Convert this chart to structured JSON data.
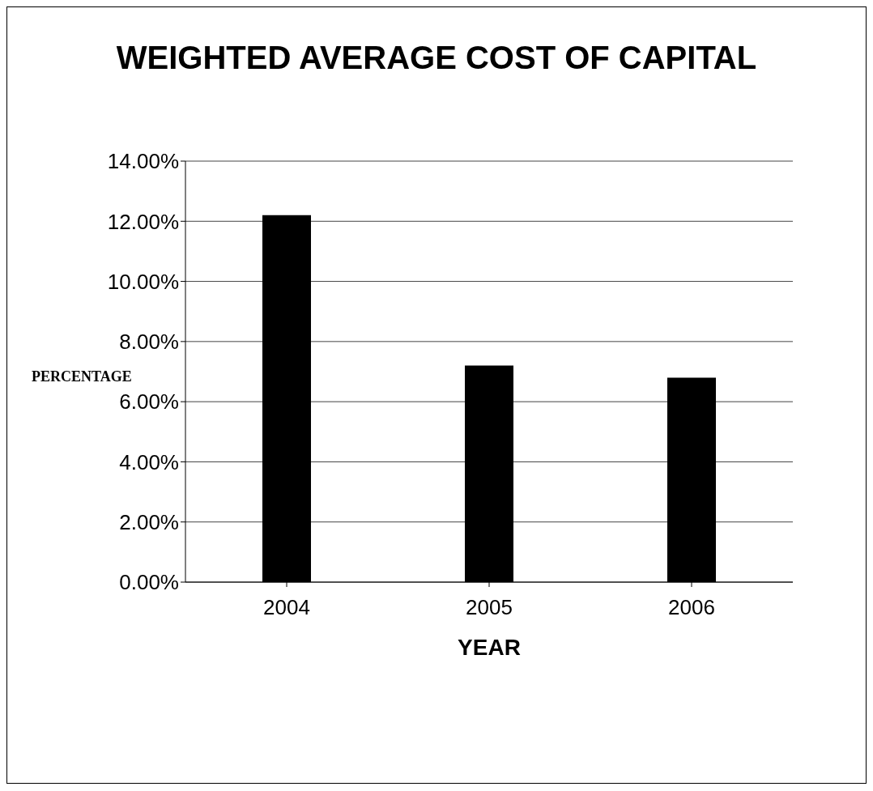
{
  "chart_data": {
    "type": "bar",
    "title": "WEIGHTED AVERAGE COST OF CAPITAL",
    "xlabel": "YEAR",
    "ylabel": "PERCENTAGE",
    "categories": [
      "2004",
      "2005",
      "2006"
    ],
    "values": [
      12.2,
      7.2,
      6.8
    ],
    "color": "#000000",
    "ylim": [
      0,
      14
    ],
    "yticks": [
      {
        "value": 0,
        "label": "0.00%"
      },
      {
        "value": 2,
        "label": "2.00%"
      },
      {
        "value": 4,
        "label": "4.00%"
      },
      {
        "value": 6,
        "label": "6.00%"
      },
      {
        "value": 8,
        "label": "8.00%"
      },
      {
        "value": 10,
        "label": "10.00%"
      },
      {
        "value": 12,
        "label": "12.00%"
      },
      {
        "value": 14,
        "label": "14.00%"
      }
    ],
    "grid": "y"
  }
}
